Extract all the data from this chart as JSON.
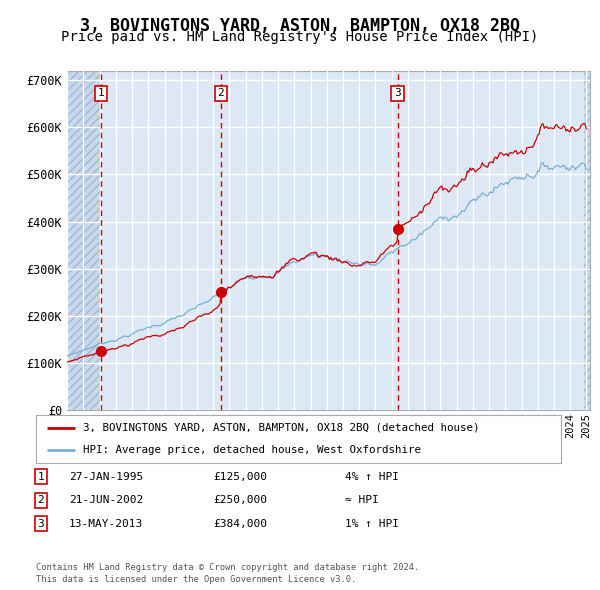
{
  "title": "3, BOVINGTONS YARD, ASTON, BAMPTON, OX18 2BQ",
  "subtitle": "Price paid vs. HM Land Registry's House Price Index (HPI)",
  "title_fontsize": 12,
  "subtitle_fontsize": 10,
  "purchases": [
    {
      "date": "1995-01-27",
      "price": 125000,
      "label": "1"
    },
    {
      "date": "2002-06-21",
      "price": 250000,
      "label": "2"
    },
    {
      "date": "2013-05-13",
      "price": 384000,
      "label": "3"
    }
  ],
  "legend_entries": [
    "3, BOVINGTONS YARD, ASTON, BAMPTON, OX18 2BQ (detached house)",
    "HPI: Average price, detached house, West Oxfordshire"
  ],
  "table_rows": [
    {
      "label": "1",
      "date": "27-JAN-1995",
      "price": "£125,000",
      "rel": "4% ↑ HPI"
    },
    {
      "label": "2",
      "date": "21-JUN-2002",
      "price": "£250,000",
      "rel": "≈ HPI"
    },
    {
      "label": "3",
      "date": "13-MAY-2013",
      "price": "£384,000",
      "rel": "1% ↑ HPI"
    }
  ],
  "footnote1": "Contains HM Land Registry data © Crown copyright and database right 2024.",
  "footnote2": "This data is licensed under the Open Government Licence v3.0.",
  "hpi_line_color": "#7aafd4",
  "price_line_color": "#cc0000",
  "dot_color": "#cc0000",
  "dashed_line_color": "#cc0000",
  "fig_bg_color": "#ffffff",
  "plot_bg_color": "#dce8f5",
  "hatch_bg_color": "#c8d8ec",
  "grid_color": "#ffffff",
  "ylim": [
    0,
    720000
  ],
  "yticks": [
    0,
    100000,
    200000,
    300000,
    400000,
    500000,
    600000,
    700000
  ],
  "ytick_labels": [
    "£0",
    "£100K",
    "£200K",
    "£300K",
    "£400K",
    "£500K",
    "£600K",
    "£700K"
  ]
}
